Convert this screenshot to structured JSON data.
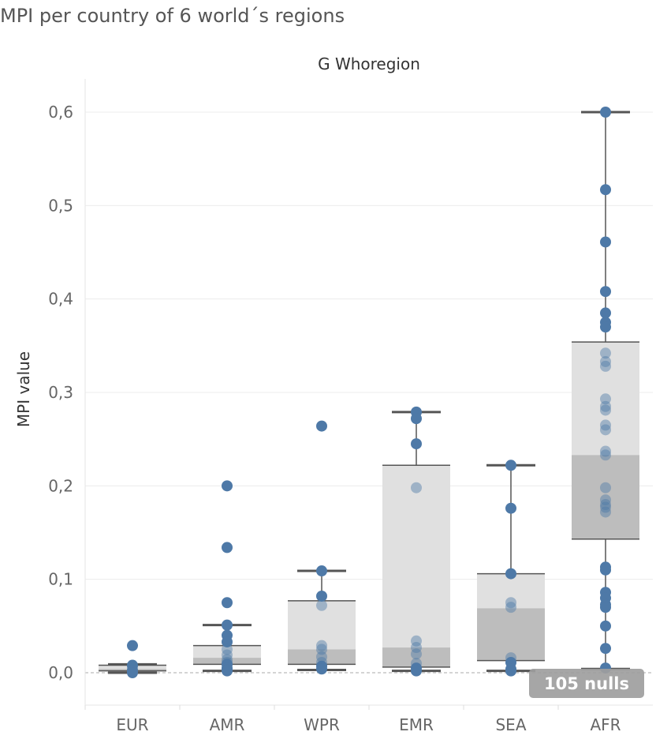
{
  "chart_data": {
    "type": "boxplot",
    "title": "MPI per country of 6 world´s regions",
    "column_header": "G Whoregion",
    "ylabel": "MPI value",
    "ylim": [
      0,
      0.6
    ],
    "yticks": [
      0,
      0.1,
      0.2,
      0.3,
      0.4,
      0.5,
      0.6
    ],
    "ytick_labels": [
      "0,0",
      "0,1",
      "0,2",
      "0,3",
      "0,4",
      "0,5",
      "0,6"
    ],
    "categories": [
      "EUR",
      "AMR",
      "WPR",
      "EMR",
      "SEA",
      "AFR"
    ],
    "grid": true,
    "null_badge": "105 nulls",
    "colors": {
      "point": "#4e79a7",
      "box_upper": "#e0e0e0",
      "box_lower": "#bdbdbd",
      "whisker": "#555555"
    },
    "boxes": [
      {
        "category": "EUR",
        "min": 0.0,
        "q1": 0.002,
        "median": 0.004,
        "q3": 0.008,
        "max": 0.009,
        "points": [
          0.029,
          0.008,
          0.007,
          0.004,
          0.002,
          0.001,
          0.0
        ]
      },
      {
        "category": "AMR",
        "min": 0.002,
        "q1": 0.009,
        "median": 0.016,
        "q3": 0.029,
        "max": 0.051,
        "points": [
          0.2,
          0.134,
          0.075,
          0.051,
          0.04,
          0.033,
          0.025,
          0.019,
          0.014,
          0.011,
          0.009,
          0.005,
          0.003,
          0.002
        ]
      },
      {
        "category": "WPR",
        "min": 0.003,
        "q1": 0.009,
        "median": 0.025,
        "q3": 0.077,
        "max": 0.109,
        "points": [
          0.264,
          0.109,
          0.082,
          0.072,
          0.029,
          0.025,
          0.017,
          0.011,
          0.007,
          0.004
        ]
      },
      {
        "category": "EMR",
        "min": 0.002,
        "q1": 0.006,
        "median": 0.027,
        "q3": 0.222,
        "max": 0.279,
        "points": [
          0.279,
          0.272,
          0.245,
          0.198,
          0.034,
          0.027,
          0.02,
          0.01,
          0.005,
          0.002
        ]
      },
      {
        "category": "SEA",
        "min": 0.002,
        "q1": 0.013,
        "median": 0.069,
        "q3": 0.106,
        "max": 0.222,
        "points": [
          0.222,
          0.176,
          0.106,
          0.075,
          0.07,
          0.016,
          0.011,
          0.004,
          0.002
        ]
      },
      {
        "category": "AFR",
        "min": 0.004,
        "q1": 0.143,
        "median": 0.233,
        "q3": 0.354,
        "max": 0.6,
        "points": [
          0.6,
          0.517,
          0.461,
          0.408,
          0.385,
          0.375,
          0.37,
          0.342,
          0.333,
          0.328,
          0.293,
          0.285,
          0.281,
          0.265,
          0.26,
          0.237,
          0.233,
          0.198,
          0.185,
          0.18,
          0.177,
          0.172,
          0.113,
          0.11,
          0.086,
          0.08,
          0.073,
          0.07,
          0.05,
          0.026,
          0.005
        ]
      }
    ]
  }
}
